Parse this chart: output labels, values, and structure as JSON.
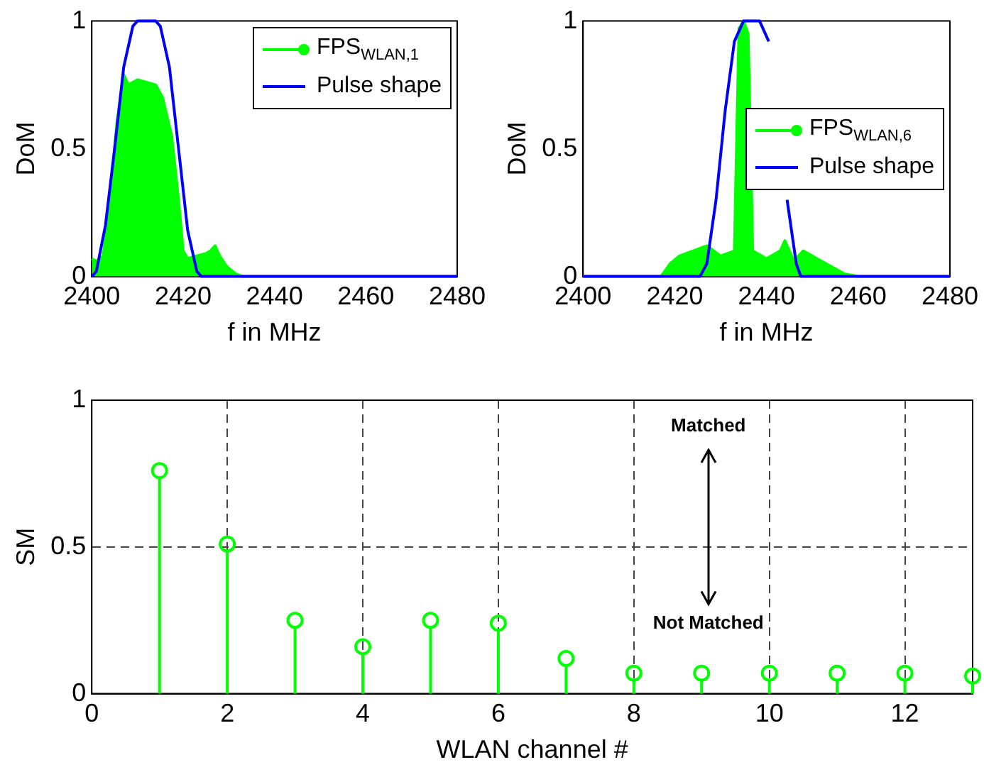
{
  "chart_data": [
    {
      "type": "line",
      "xlabel": "f in MHz",
      "ylabel": "DoM",
      "xlim": [
        2400,
        2480
      ],
      "xticks": [
        2400,
        2420,
        2440,
        2460,
        2480
      ],
      "ylim": [
        0,
        1
      ],
      "yticks": [
        0,
        0.5,
        1
      ],
      "grid": false,
      "legend": "top right",
      "series": [
        {
          "name": "FPS$_{WLAN,1}$",
          "type": "area",
          "color": "#00ff00",
          "x": [
            2400,
            2401,
            2402.5,
            2404,
            2405.5,
            2407,
            2408,
            2410,
            2412,
            2414,
            2415.5,
            2417.5,
            2419,
            2420,
            2421,
            2423,
            2425,
            2426,
            2427,
            2428,
            2429.5,
            2431.5,
            2433,
            2480
          ],
          "values": [
            0.07,
            0.06,
            0.08,
            0.3,
            0.6,
            0.79,
            0.75,
            0.77,
            0.76,
            0.75,
            0.7,
            0.55,
            0.3,
            0.1,
            0.07,
            0.08,
            0.09,
            0.1,
            0.12,
            0.08,
            0.04,
            0.01,
            0,
            0
          ]
        },
        {
          "name": "Pulse shape",
          "type": "line",
          "color": "#0000ff",
          "x": [
            2400,
            2401,
            2403,
            2405,
            2407,
            2409,
            2410,
            2414,
            2415,
            2417,
            2419,
            2421,
            2423,
            2424,
            2480
          ],
          "values": [
            0,
            0.02,
            0.2,
            0.5,
            0.82,
            0.98,
            1,
            1,
            0.98,
            0.82,
            0.5,
            0.18,
            0.02,
            0,
            0
          ]
        }
      ]
    },
    {
      "type": "line",
      "xlabel": "f in MHz",
      "ylabel": "DoM",
      "xlim": [
        2400,
        2480
      ],
      "xticks": [
        2400,
        2420,
        2440,
        2460,
        2480
      ],
      "ylim": [
        0,
        1
      ],
      "yticks": [
        0,
        0.5,
        1
      ],
      "grid": false,
      "legend": "right",
      "series": [
        {
          "name": "FPS$_{WLAN,6}$",
          "type": "area",
          "color": "#00ff00",
          "x": [
            2400,
            2417,
            2419,
            2421,
            2424,
            2427,
            2430,
            2433,
            2434,
            2435,
            2436,
            2437,
            2440,
            2443,
            2444,
            2446,
            2448,
            2451,
            2454,
            2457,
            2460,
            2480
          ],
          "values": [
            0,
            0,
            0.05,
            0.08,
            0.1,
            0.12,
            0.08,
            0.1,
            0.97,
            1,
            0.95,
            0.1,
            0.07,
            0.1,
            0.14,
            0.06,
            0.1,
            0.07,
            0.04,
            0.01,
            0,
            0
          ]
        },
        {
          "name": "Pulse shape",
          "type": "line",
          "color": "#0000ff",
          "x": [
            2400,
            2425.5,
            2427,
            2429,
            2431,
            2433,
            2435,
            2438.5,
            2440.5,
            2442.5,
            2444.5,
            2446.5,
            2447.5,
            2480
          ],
          "values": [
            0,
            0,
            0.05,
            0.3,
            0.65,
            0.92,
            1,
            1,
            0.92,
            null,
            0.3,
            0.05,
            0,
            0
          ]
        }
      ]
    },
    {
      "type": "lollipop",
      "xlabel": "WLAN channel #",
      "ylabel": "SM",
      "xlim": [
        0,
        13
      ],
      "xticks": [
        0,
        2,
        4,
        6,
        8,
        10,
        12
      ],
      "ylim": [
        0,
        1
      ],
      "yticks": [
        0,
        0.5,
        1
      ],
      "grid": true,
      "marker": "circle",
      "legend": false,
      "annotations": [
        "Matched",
        "Not Matched"
      ],
      "x": [
        1,
        2,
        3,
        4,
        5,
        6,
        7,
        8,
        9,
        10,
        11,
        12,
        13
      ],
      "series": [
        {
          "color": "#00ff00",
          "values": [
            0.76,
            0.51,
            0.25,
            0.16,
            0.25,
            0.24,
            0.12,
            0.07,
            0.07,
            0.07,
            0.07,
            0.07,
            0.06
          ]
        }
      ]
    }
  ]
}
